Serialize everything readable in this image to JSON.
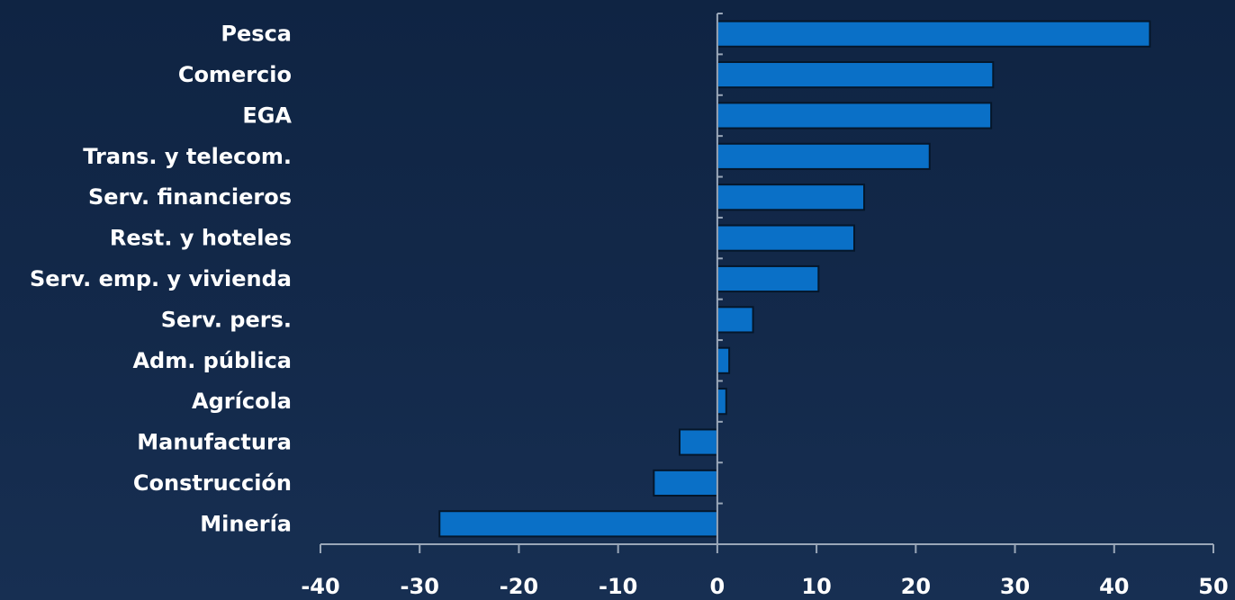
{
  "chart_data": {
    "type": "bar",
    "orientation": "horizontal",
    "title": "",
    "xlabel": "",
    "ylabel": "",
    "categories": [
      "Pesca",
      "Comercio",
      "EGA",
      "Trans. y telecom.",
      "Serv. financieros",
      "Rest. y hoteles",
      "Serv. emp. y  vivienda",
      "Serv. pers.",
      "Adm. pública",
      "Agrícola",
      "Manufactura",
      "Construcción",
      "Minería"
    ],
    "values": [
      43.6,
      27.8,
      27.6,
      21.4,
      14.8,
      13.8,
      10.2,
      3.6,
      1.2,
      0.9,
      -3.8,
      -6.4,
      -28.0
    ],
    "xlim": [
      -40,
      50
    ],
    "xticks": [
      "-40",
      "-30",
      "-20",
      "-10",
      "0",
      "10",
      "20",
      "30",
      "40",
      "50"
    ],
    "grid": false,
    "legend": "none",
    "colors": {
      "bar_fill": "#0a70c7",
      "bar_stroke": "#05162a",
      "axis": "#9aa7b8",
      "text": "#ffffff",
      "background_top": "#0f2443",
      "background_bottom": "#172f52"
    }
  }
}
